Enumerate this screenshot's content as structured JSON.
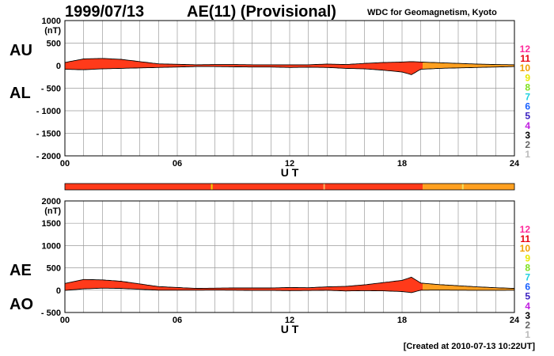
{
  "header": {
    "date": "1999/07/13",
    "title": "AE(11) (Provisional)",
    "source": "WDC for Geomagnetism, Kyoto"
  },
  "footer": {
    "created": "[Created at 2010-07-13 10:22UT]"
  },
  "colors": {
    "grid": "#9a9a9a",
    "red": "#ff3a1a",
    "orange": "#ffa020",
    "outline": "#000000"
  },
  "version_legend": [
    {
      "label": "12",
      "color": "#ff2a9a"
    },
    {
      "label": "11",
      "color": "#e8000f"
    },
    {
      "label": "10",
      "color": "#f0a000"
    },
    {
      "label": "9",
      "color": "#e8e800"
    },
    {
      "label": "8",
      "color": "#7fe020"
    },
    {
      "label": "7",
      "color": "#20d0e0"
    },
    {
      "label": "6",
      "color": "#1860ff"
    },
    {
      "label": "5",
      "color": "#3a20c0"
    },
    {
      "label": "4",
      "color": "#c020e0"
    },
    {
      "label": "3",
      "color": "#000000"
    },
    {
      "label": "2",
      "color": "#666666"
    },
    {
      "label": "1",
      "color": "#bbbbbb"
    }
  ],
  "status_bar": {
    "segments": [
      {
        "from": 0,
        "to": 19.1,
        "color": "#ff3a1a"
      },
      {
        "from": 19.1,
        "to": 24,
        "color": "#ffa020"
      }
    ],
    "marks": [
      {
        "at": 7.8,
        "color": "#f0d000"
      },
      {
        "at": 13.8,
        "color": "#ffb060"
      },
      {
        "at": 21.2,
        "color": "#f0e060"
      }
    ]
  },
  "chart_data": [
    {
      "type": "area",
      "label_upper": "AU",
      "label_lower": "AL",
      "unit": "(nT)",
      "ylim": [
        -2000,
        1000
      ],
      "yticks": [
        1000,
        500,
        0,
        -500,
        -1000,
        -1500,
        -2000
      ],
      "ytick_labels": [
        "1000",
        "500",
        "0",
        "- 500",
        "- 1000",
        "- 1500",
        "- 2000"
      ],
      "xlim": [
        0,
        24
      ],
      "xticks": [
        0,
        6,
        12,
        18,
        24
      ],
      "xtick_labels": [
        "00",
        "06",
        "12",
        "18",
        "24"
      ],
      "xlabel": "U T",
      "version_switch_hour": 19.1,
      "x": [
        0,
        1,
        2,
        3,
        4,
        5,
        6,
        7,
        8,
        9,
        10,
        11,
        12,
        13,
        14,
        15,
        16,
        17,
        18,
        18.5,
        19,
        20,
        21,
        22,
        23,
        24
      ],
      "series": [
        {
          "name": "AU",
          "values": [
            70,
            150,
            160,
            140,
            90,
            40,
            30,
            20,
            25,
            25,
            20,
            20,
            20,
            20,
            35,
            25,
            50,
            70,
            80,
            90,
            80,
            65,
            50,
            35,
            25,
            20
          ]
        },
        {
          "name": "AL",
          "values": [
            -80,
            -90,
            -70,
            -60,
            -50,
            -40,
            -30,
            -20,
            -20,
            -25,
            -30,
            -30,
            -40,
            -35,
            -40,
            -60,
            -70,
            -100,
            -140,
            -200,
            -80,
            -60,
            -50,
            -40,
            -30,
            -20
          ]
        }
      ]
    },
    {
      "type": "area",
      "label_upper": "AE",
      "label_lower": "AO",
      "unit": "(nT)",
      "ylim": [
        -500,
        2000
      ],
      "yticks": [
        2000,
        1500,
        1000,
        500,
        0,
        -500
      ],
      "ytick_labels": [
        "2000",
        "1500",
        "1000",
        "500",
        "0",
        "- 500"
      ],
      "xlim": [
        0,
        24
      ],
      "xticks": [
        0,
        6,
        12,
        18,
        24
      ],
      "xtick_labels": [
        "00",
        "06",
        "12",
        "18",
        "24"
      ],
      "xlabel": "U T",
      "version_switch_hour": 19.1,
      "x": [
        0,
        1,
        2,
        3,
        4,
        5,
        6,
        7,
        8,
        9,
        10,
        11,
        12,
        13,
        14,
        15,
        16,
        17,
        18,
        18.5,
        19,
        20,
        21,
        22,
        23,
        24
      ],
      "series": [
        {
          "name": "AE",
          "values": [
            150,
            240,
            230,
            200,
            140,
            80,
            60,
            40,
            45,
            50,
            50,
            50,
            60,
            55,
            75,
            85,
            120,
            170,
            220,
            290,
            160,
            125,
            100,
            75,
            55,
            40
          ]
        },
        {
          "name": "AO",
          "values": [
            -5,
            30,
            45,
            40,
            20,
            0,
            0,
            0,
            2,
            0,
            -5,
            -5,
            -10,
            -7,
            -2,
            -17,
            -10,
            -15,
            -30,
            -55,
            0,
            2,
            0,
            -2,
            -2,
            0
          ]
        }
      ]
    }
  ]
}
